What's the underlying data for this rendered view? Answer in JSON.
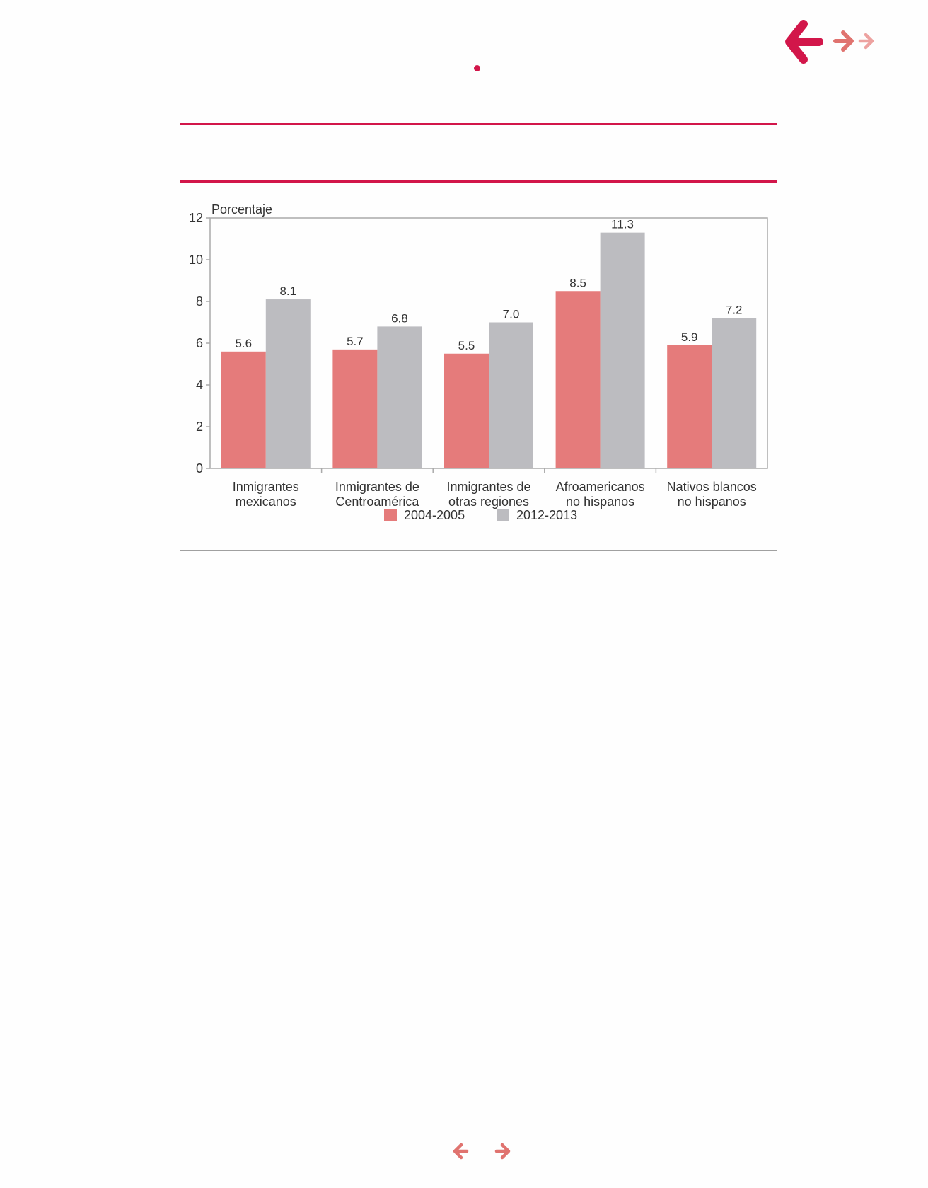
{
  "colors": {
    "accent": "#d2164a",
    "arrow_mid": "#e0736f",
    "arrow_light": "#eda2a0",
    "series_2004": "#e57b7b",
    "series_2012": "#bcbcc0",
    "rule_gray": "#a0a0a0",
    "axis": "#aaaaaa",
    "text": "#333333"
  },
  "navigation": {
    "back_icon": "arrow-left-icon",
    "forward_icon": "arrow-right-icon"
  },
  "chart_data": {
    "type": "bar",
    "ylabel": "Porcentaje",
    "ylim": [
      0,
      12
    ],
    "yticks": [
      "0",
      "2",
      "4",
      "6",
      "8",
      "10",
      "12"
    ],
    "categories": [
      [
        "Inmigrantes",
        "mexicanos"
      ],
      [
        "Inmigrantes de",
        "Centroamérica"
      ],
      [
        "Inmigrantes de",
        "otras regiones"
      ],
      [
        "Afroamericanos",
        "no hispanos"
      ],
      [
        "Nativos blancos",
        "no hispanos"
      ]
    ],
    "series": [
      {
        "name": "2004-2005",
        "values": [
          5.6,
          5.7,
          5.5,
          8.5,
          5.9
        ],
        "labels": [
          "5.6",
          "5.7",
          "5.5",
          "8.5",
          "5.9"
        ]
      },
      {
        "name": "2012-2013",
        "values": [
          8.1,
          6.8,
          7.0,
          11.3,
          7.2
        ],
        "labels": [
          "8.1",
          "6.8",
          "7.0",
          "11.3",
          "7.2"
        ]
      }
    ],
    "legend_position": "bottom-center",
    "grid": false
  }
}
